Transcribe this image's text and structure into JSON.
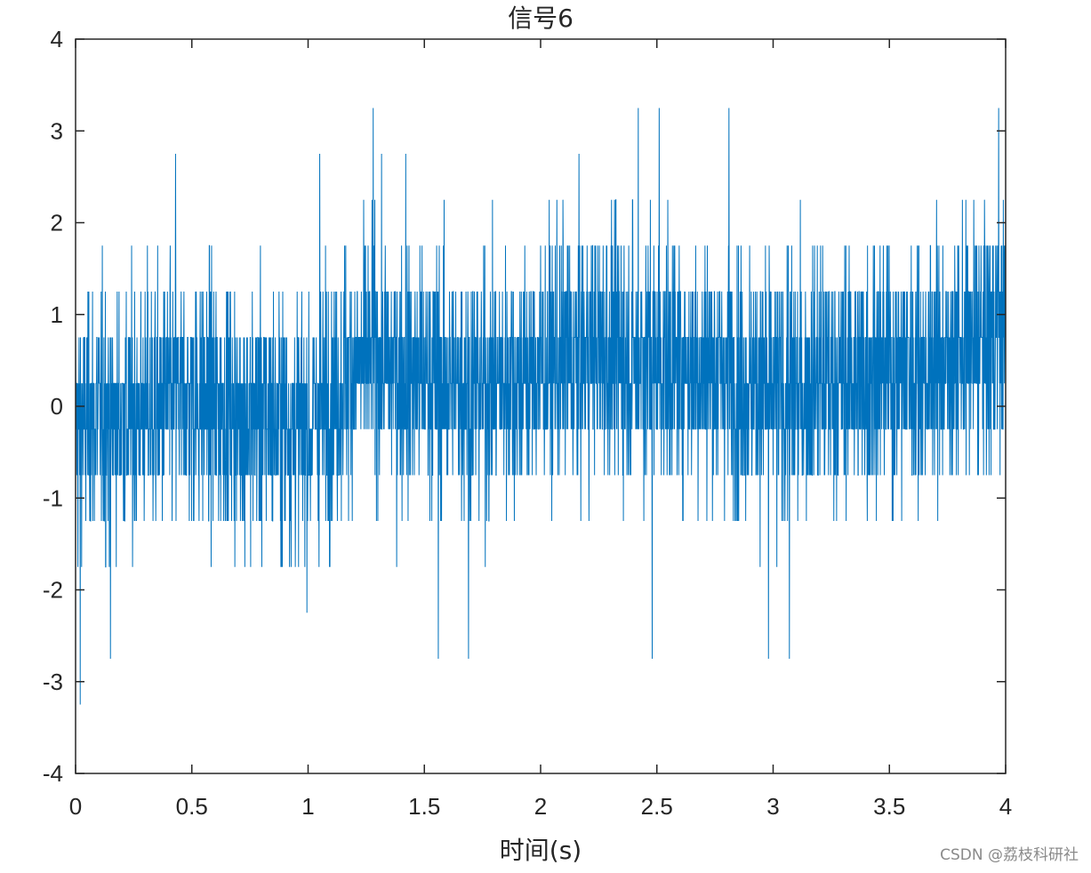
{
  "chart_data": {
    "type": "line",
    "title": "信号6",
    "xlabel": "时间(s)",
    "ylabel": "",
    "xlim": [
      0,
      4
    ],
    "ylim": [
      -4,
      4
    ],
    "xticks": [
      0,
      0.5,
      1,
      1.5,
      2,
      2.5,
      3,
      3.5,
      4
    ],
    "xtick_labels": [
      "0",
      "0.5",
      "1",
      "1.5",
      "2",
      "2.5",
      "3",
      "3.5",
      "4"
    ],
    "yticks": [
      -4,
      -3,
      -2,
      -1,
      0,
      1,
      2,
      3,
      4
    ],
    "ytick_labels": [
      "-4",
      "-3",
      "-2",
      "-1",
      "0",
      "1",
      "2",
      "3",
      "4"
    ],
    "grid": false,
    "series": [
      {
        "color": "#0072BD",
        "sample_rate_hz": 1000,
        "quantization_step": 0.5,
        "x_start": 0,
        "x_end": 4,
        "envelope": {
          "x": [
            0,
            0.25,
            0.5,
            0.75,
            1,
            1.25,
            1.5,
            1.75,
            2,
            2.25,
            2.5,
            2.75,
            3,
            3.25,
            3.5,
            3.75,
            4
          ],
          "mean": [
            -0.2,
            -0.1,
            0.1,
            -0.1,
            -0.2,
            0.5,
            0.3,
            0.2,
            0.4,
            0.6,
            0.5,
            0.4,
            0.1,
            0.3,
            0.4,
            0.5,
            0.8
          ]
        },
        "peaks": [
          {
            "x": 0.02,
            "y": -3.25
          },
          {
            "x": 0.15,
            "y": -2.75
          },
          {
            "x": 0.43,
            "y": 2.75
          },
          {
            "x": 1.05,
            "y": 2.75
          },
          {
            "x": 1.28,
            "y": 3.25
          },
          {
            "x": 1.42,
            "y": 2.75
          },
          {
            "x": 1.56,
            "y": -2.75
          },
          {
            "x": 1.69,
            "y": -2.75
          },
          {
            "x": 2.42,
            "y": 3.25
          },
          {
            "x": 2.48,
            "y": -2.75
          },
          {
            "x": 2.51,
            "y": 3.25
          },
          {
            "x": 2.81,
            "y": 3.25
          },
          {
            "x": 2.98,
            "y": -2.75
          },
          {
            "x": 3.07,
            "y": -2.75
          },
          {
            "x": 3.97,
            "y": 3.25
          }
        ]
      }
    ]
  },
  "watermark": "CSDN @荔枝科研社"
}
